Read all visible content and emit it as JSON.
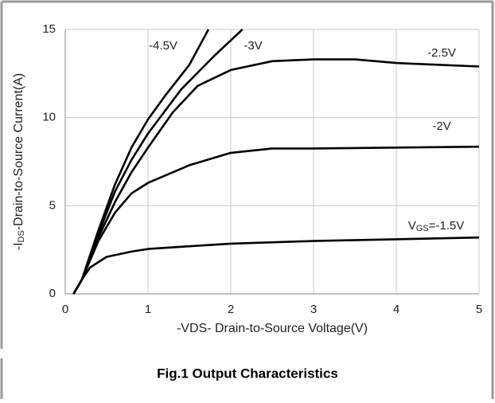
{
  "chart_data": {
    "type": "line",
    "title": "Fig.1 Output Characteristics",
    "xlabel": "-VDS- Drain-to-Source Voltage(V)",
    "ylabel": [
      {
        "text": "-I"
      },
      {
        "text": "DS",
        "sub": true
      },
      {
        "text": "-Drain-to-Source Current(A)"
      }
    ],
    "xlim": [
      0,
      5
    ],
    "xticks": [
      0,
      1,
      2,
      3,
      4,
      5
    ],
    "ylim": [
      0,
      15
    ],
    "yticks": [
      0,
      5,
      10,
      15
    ],
    "grid": true,
    "series": [
      {
        "name": "-4.5V",
        "color": "#000000",
        "x": [
          0.1,
          0.2,
          0.4,
          0.6,
          0.8,
          1,
          1.2,
          1.5,
          1.73
        ],
        "values": [
          0,
          0.8,
          3.6,
          6.2,
          8.3,
          9.9,
          11.2,
          13,
          15
        ]
      },
      {
        "name": "-3V",
        "color": "#000000",
        "x": [
          0.1,
          0.2,
          0.4,
          0.6,
          0.8,
          1,
          1.4,
          1.8,
          2.14
        ],
        "values": [
          0,
          0.8,
          3.4,
          5.8,
          7.6,
          9.1,
          11.6,
          13.5,
          15
        ]
      },
      {
        "name": "-2.5V",
        "color": "#000000",
        "x": [
          0.1,
          0.2,
          0.4,
          0.6,
          0.8,
          1,
          1.3,
          1.6,
          2,
          2.5,
          3,
          3.5,
          4,
          4.5,
          5
        ],
        "values": [
          0,
          0.8,
          3.2,
          5.2,
          6.9,
          8.3,
          10.3,
          11.8,
          12.7,
          13.2,
          13.3,
          13.3,
          13.1,
          13.0,
          12.9
        ]
      },
      {
        "name": "-2V",
        "color": "#000000",
        "x": [
          0.1,
          0.2,
          0.4,
          0.6,
          0.8,
          1,
          1.5,
          2,
          2.5,
          3,
          4,
          5
        ],
        "values": [
          0,
          0.8,
          3.0,
          4.6,
          5.7,
          6.3,
          7.3,
          8.0,
          8.25,
          8.25,
          8.3,
          8.35
        ]
      },
      {
        "name": [
          {
            "text": "V"
          },
          {
            "text": "GS",
            "sub": true
          },
          {
            "text": "=-1.5V"
          }
        ],
        "color": "#000000",
        "x": [
          0.1,
          0.2,
          0.3,
          0.5,
          0.8,
          1,
          1.5,
          2,
          3,
          4,
          5
        ],
        "values": [
          0,
          0.8,
          1.5,
          2.1,
          2.4,
          2.55,
          2.7,
          2.85,
          3.0,
          3.1,
          3.2
        ]
      }
    ]
  }
}
